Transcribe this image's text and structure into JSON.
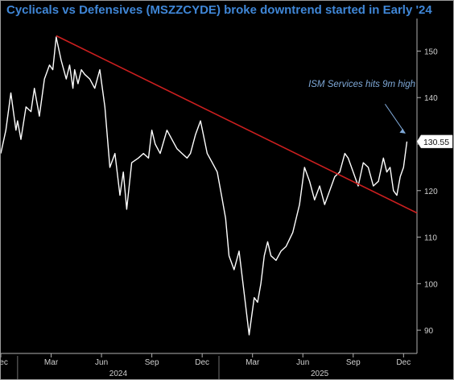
{
  "title": "Cyclicals vs Defensives (MSZZCYDE) broke downtrend started in Early '24",
  "chart_data": {
    "type": "line",
    "title": "Cyclicals vs Defensives (MSZZCYDE) broke downtrend started in Early '24",
    "xlabel": "",
    "ylabel": "",
    "ylim": [
      85,
      157
    ],
    "xlim": [
      0,
      24.8
    ],
    "y_ticks": [
      90,
      100,
      110,
      120,
      130,
      140,
      150
    ],
    "x_ticks": [
      {
        "m": 0,
        "label": "Dec"
      },
      {
        "m": 3,
        "label": "Mar"
      },
      {
        "m": 6,
        "label": "Jun"
      },
      {
        "m": 9,
        "label": "Sep"
      },
      {
        "m": 12,
        "label": "Dec"
      },
      {
        "m": 15,
        "label": "Mar"
      },
      {
        "m": 18,
        "label": "Jun"
      },
      {
        "m": 21,
        "label": "Sep"
      },
      {
        "m": 24,
        "label": "Dec"
      }
    ],
    "year_labels": [
      {
        "m": 7,
        "label": "2024"
      },
      {
        "m": 19,
        "label": "2025"
      }
    ],
    "grid": false,
    "series": [
      {
        "color": "#ffffff",
        "x": [
          0,
          0.3,
          0.6,
          0.9,
          1.0,
          1.2,
          1.5,
          1.8,
          2.0,
          2.3,
          2.6,
          2.9,
          3.1,
          3.3,
          3.6,
          3.9,
          4.1,
          4.3,
          4.4,
          4.6,
          4.8,
          5.0,
          5.3,
          5.6,
          5.9,
          6.2,
          6.5,
          6.8,
          7.1,
          7.3,
          7.5,
          7.8,
          8.2,
          8.5,
          8.8,
          9.0,
          9.2,
          9.5,
          9.9,
          10.2,
          10.5,
          10.8,
          11.1,
          11.3,
          11.6,
          11.9,
          12.3,
          12.6,
          12.9,
          13.2,
          13.4,
          13.6,
          13.9,
          14.2,
          14.5,
          14.8,
          15.1,
          15.3,
          15.5,
          15.7,
          15.9,
          16.1,
          16.4,
          16.7,
          17.0,
          17.4,
          17.8,
          18.1,
          18.4,
          18.7,
          19.0,
          19.3,
          19.6,
          19.9,
          20.2,
          20.5,
          20.7,
          21.0,
          21.3,
          21.6,
          21.9,
          22.2,
          22.5,
          22.8,
          23.0,
          23.2,
          23.4,
          23.6,
          23.8,
          24.0,
          24.2
        ],
        "y": [
          128,
          133,
          141,
          133,
          135,
          131,
          138,
          137,
          142,
          136,
          144,
          147,
          146,
          153,
          148,
          144,
          147,
          142,
          146,
          143,
          146,
          145,
          144,
          142,
          146,
          138,
          125,
          128,
          119,
          124,
          116,
          126,
          127,
          128,
          127,
          133,
          130,
          128,
          133,
          131,
          129,
          128,
          127,
          128,
          132,
          135,
          128,
          126,
          124,
          118,
          114,
          106,
          103,
          107,
          98,
          89,
          97,
          96,
          100,
          106,
          109,
          106,
          105,
          107,
          108,
          111,
          117,
          125,
          122,
          118,
          121,
          117,
          120,
          123,
          124,
          128,
          127,
          124,
          121,
          126,
          125,
          121,
          122,
          127,
          124,
          125,
          120,
          119,
          123,
          125,
          130.55
        ]
      }
    ],
    "trendline": {
      "color": "#cc1f1f",
      "x": [
        3.3,
        24.8
      ],
      "y": [
        153.3,
        115.2
      ]
    },
    "last_value": {
      "label": "130.55",
      "value": 130.55
    },
    "annotation": {
      "text": "ISM Services hits 9m high"
    }
  }
}
